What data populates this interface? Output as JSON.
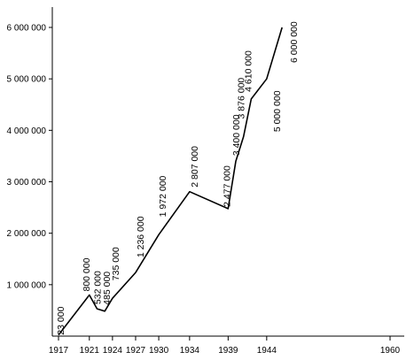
{
  "chart_data": {
    "type": "line",
    "title": "",
    "xlabel": "",
    "ylabel": "",
    "xlim": [
      1917,
      1960
    ],
    "ylim": [
      0,
      6500000
    ],
    "grid": false,
    "legend": "none",
    "line_color": "#000000",
    "x_ticks": [
      {
        "value": 1917,
        "label": "1917"
      },
      {
        "value": 1921,
        "label": "1921"
      },
      {
        "value": 1924,
        "label": "1924"
      },
      {
        "value": 1927,
        "label": "1927"
      },
      {
        "value": 1930,
        "label": "1930"
      },
      {
        "value": 1934,
        "label": "1934"
      },
      {
        "value": 1939,
        "label": "1939"
      },
      {
        "value": 1944,
        "label": "1944"
      },
      {
        "value": 1960,
        "label": "1960"
      }
    ],
    "y_ticks": [
      {
        "value": 1000000,
        "label": "1 000 000"
      },
      {
        "value": 2000000,
        "label": "2 000 000"
      },
      {
        "value": 3000000,
        "label": "3 000 000"
      },
      {
        "value": 4000000,
        "label": "4 000 000"
      },
      {
        "value": 5000000,
        "label": "5 000 000"
      },
      {
        "value": 6000000,
        "label": "6 000 000"
      }
    ],
    "points": [
      {
        "x": 1917,
        "y": 23000,
        "label": "23 000"
      },
      {
        "x": 1921,
        "y": 800000,
        "label": "800 000"
      },
      {
        "x": 1922,
        "y": 532000,
        "label": "532 000"
      },
      {
        "x": 1923,
        "y": 485000,
        "label": "485 000"
      },
      {
        "x": 1924,
        "y": 735000,
        "label": "735 000"
      },
      {
        "x": 1927,
        "y": 1236000,
        "label": "1 236 000"
      },
      {
        "x": 1930,
        "y": 1972000,
        "label": "1 972 000"
      },
      {
        "x": 1934,
        "y": 2807000,
        "label": "2 807 000"
      },
      {
        "x": 1939,
        "y": 2477000,
        "label": "2 477 000"
      },
      {
        "x": 1940,
        "y": 3400000,
        "label": "3 400 000"
      },
      {
        "x": 1941,
        "y": 3876000,
        "label": "3 876 000"
      },
      {
        "x": 1942,
        "y": 4610000,
        "label": "4 610 000"
      },
      {
        "x": 1944,
        "y": 5000000,
        "label": "5 000 000"
      },
      {
        "x": 1946,
        "y": 6000000,
        "label": "6 000 000"
      }
    ]
  }
}
